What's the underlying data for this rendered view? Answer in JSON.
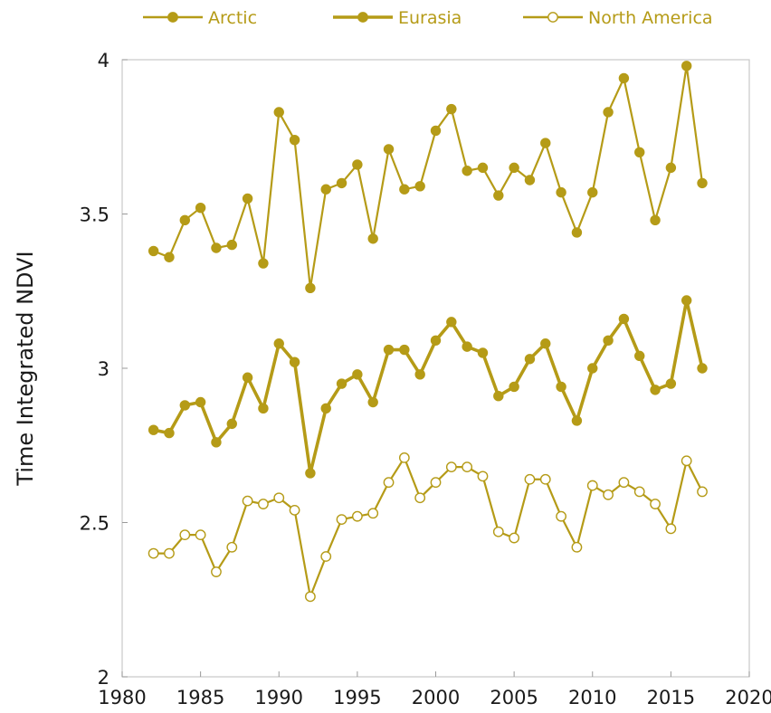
{
  "chart_data": {
    "type": "line",
    "title": "",
    "xlabel": "",
    "ylabel": "Time Integrated NDVI",
    "xlim": [
      1980,
      2020
    ],
    "ylim": [
      2,
      4
    ],
    "xticks": [
      "1980",
      "1985",
      "1990",
      "1995",
      "2000",
      "2005",
      "2010",
      "2015",
      "2020"
    ],
    "yticks": [
      "2",
      "2.5",
      "3",
      "3.5",
      "4"
    ],
    "grid": false,
    "legend_position": "top",
    "series_color": "#b59b17",
    "x": [
      1982,
      1983,
      1984,
      1985,
      1986,
      1987,
      1988,
      1989,
      1990,
      1991,
      1992,
      1993,
      1994,
      1995,
      1996,
      1997,
      1998,
      1999,
      2000,
      2001,
      2002,
      2003,
      2004,
      2005,
      2006,
      2007,
      2008,
      2009,
      2010,
      2011,
      2012,
      2013,
      2014,
      2015,
      2016,
      2017
    ],
    "series": [
      {
        "name": "Arctic",
        "marker": "filled",
        "line_width": "thin",
        "values": [
          3.38,
          3.36,
          3.48,
          3.52,
          3.39,
          3.4,
          3.55,
          3.34,
          3.83,
          3.74,
          3.26,
          3.58,
          3.6,
          3.66,
          3.42,
          3.71,
          3.58,
          3.59,
          3.77,
          3.84,
          3.64,
          3.65,
          3.56,
          3.65,
          3.61,
          3.73,
          3.57,
          3.44,
          3.57,
          3.83,
          3.94,
          3.7,
          3.48,
          3.65,
          3.98,
          3.6
        ]
      },
      {
        "name": "Eurasia",
        "marker": "filled",
        "line_width": "thick",
        "values": [
          2.8,
          2.79,
          2.88,
          2.89,
          2.76,
          2.82,
          2.97,
          2.87,
          3.08,
          3.02,
          2.66,
          2.87,
          2.95,
          2.98,
          2.89,
          3.06,
          3.06,
          2.98,
          3.09,
          3.15,
          3.07,
          3.05,
          2.91,
          2.94,
          3.03,
          3.08,
          2.94,
          2.83,
          3.0,
          3.09,
          3.16,
          3.04,
          2.93,
          2.95,
          3.22,
          3.0
        ]
      },
      {
        "name": "North America",
        "marker": "open",
        "line_width": "thin",
        "values": [
          2.4,
          2.4,
          2.46,
          2.46,
          2.34,
          2.42,
          2.57,
          2.56,
          2.58,
          2.54,
          2.26,
          2.39,
          2.51,
          2.52,
          2.53,
          2.63,
          2.71,
          2.58,
          2.63,
          2.68,
          2.68,
          2.65,
          2.47,
          2.45,
          2.64,
          2.64,
          2.52,
          2.42,
          2.62,
          2.59,
          2.63,
          2.6,
          2.56,
          2.48,
          2.7,
          2.6
        ]
      }
    ]
  }
}
